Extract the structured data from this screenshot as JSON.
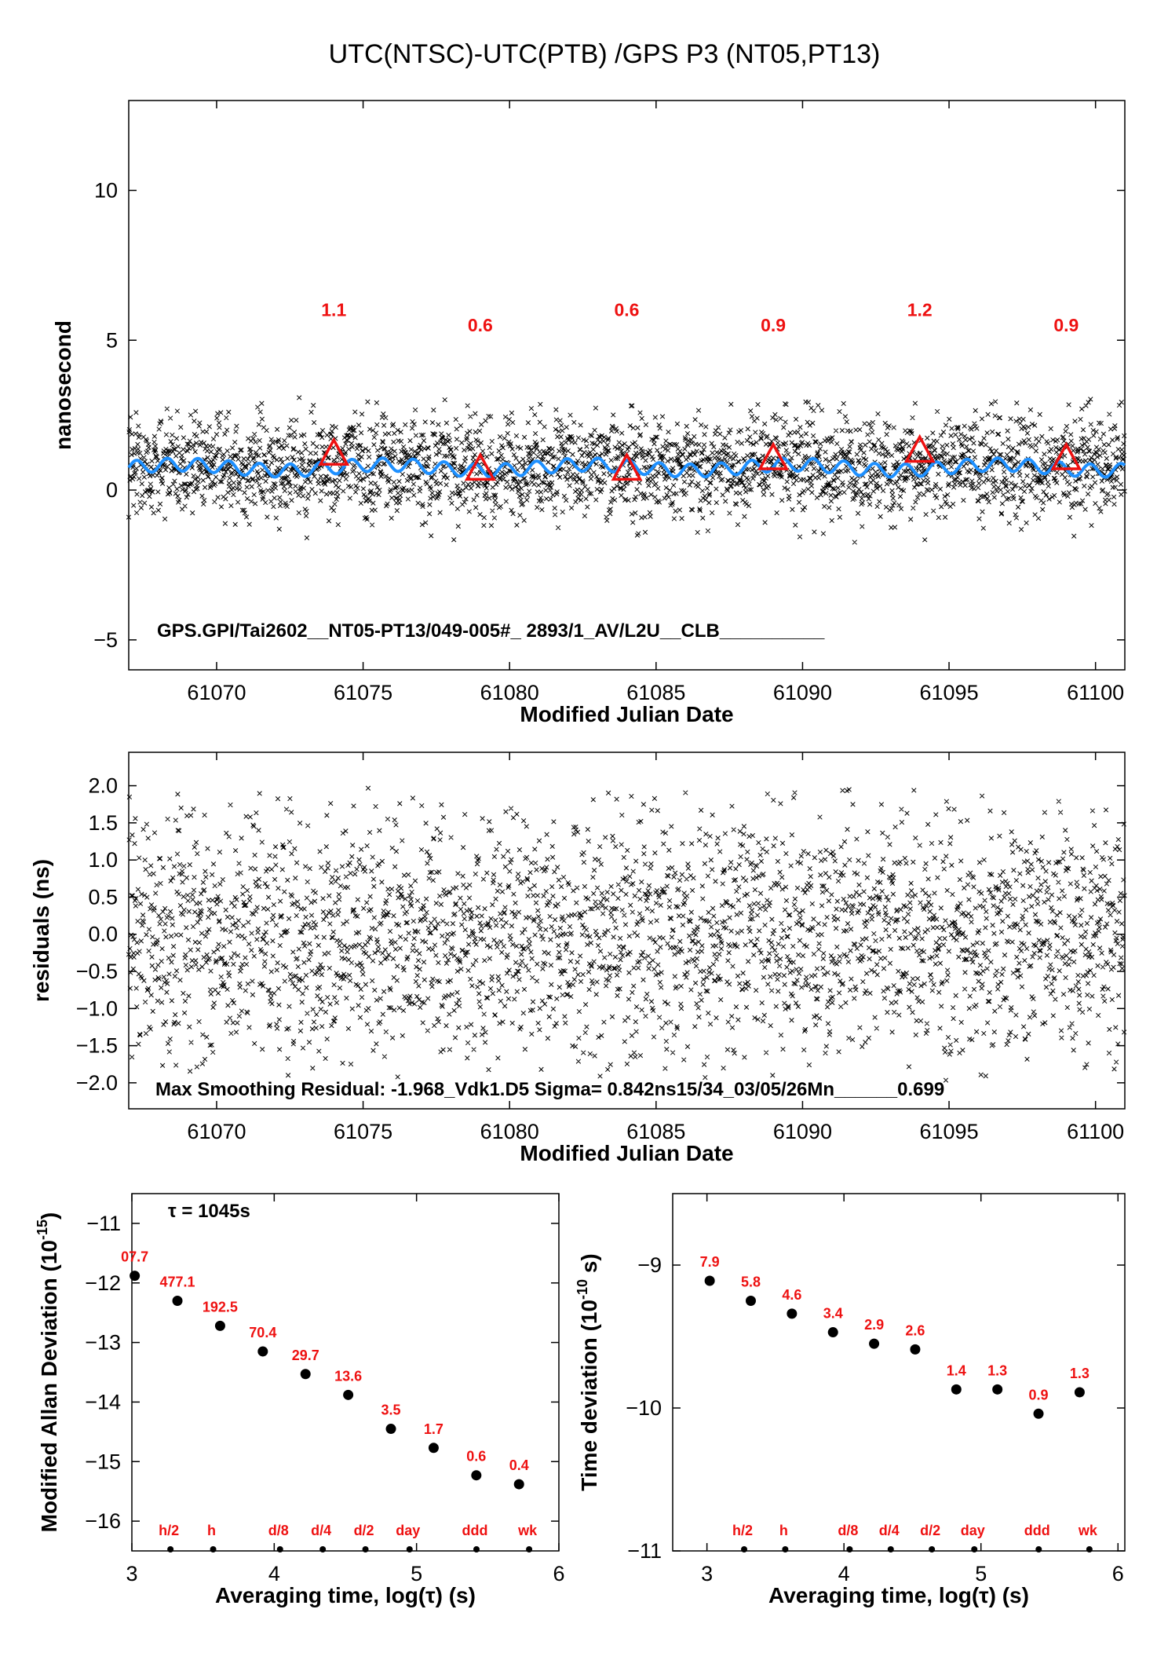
{
  "title": "UTC(NTSC)-UTC(PTB)  /GPS  P3  (NT05,PT13)",
  "colors": {
    "smooth_line": "#1e90ff",
    "markers": "#ee1111",
    "points": "#000000"
  },
  "chart_data": [
    {
      "id": "time-series",
      "type": "scatter",
      "xlabel": "Modified Julian Date",
      "ylabel": "nanosecond",
      "xlim": [
        61067,
        61101
      ],
      "ylim": [
        -6,
        13
      ],
      "xticks": [
        61070,
        61075,
        61080,
        61085,
        61090,
        61095,
        61100
      ],
      "yticks": [
        -5,
        0,
        5,
        10
      ],
      "annotation": "GPS.GPI/Tai2602__NT05-PT13/049-005#_  2893/1_AV/L2U__CLB__________",
      "scatter_description": {
        "center_ns": 0.7,
        "spread_ns": 0.85,
        "count": 2893
      },
      "smooth_series": {
        "mean_ns": 0.75,
        "color": "#1e90ff"
      },
      "markers": [
        {
          "x": 61074,
          "y": 1.2,
          "label": "1.1"
        },
        {
          "x": 61079,
          "y": 0.7,
          "label": "0.6"
        },
        {
          "x": 61084,
          "y": 0.7,
          "label": "0.6"
        },
        {
          "x": 61089,
          "y": 1.05,
          "label": "0.9"
        },
        {
          "x": 61094,
          "y": 1.3,
          "label": "1.2"
        },
        {
          "x": 61099,
          "y": 1.05,
          "label": "0.9"
        }
      ]
    },
    {
      "id": "residuals",
      "type": "scatter",
      "xlabel": "Modified Julian Date",
      "ylabel": "residuals (ns)",
      "xlim": [
        61067,
        61101
      ],
      "ylim": [
        -2.35,
        2.45
      ],
      "xticks": [
        61070,
        61075,
        61080,
        61085,
        61090,
        61095,
        61100
      ],
      "yticks": [
        -2.0,
        -1.5,
        -1.0,
        -0.5,
        0.0,
        0.5,
        1.0,
        1.5,
        2.0
      ],
      "annotation": "Max Smoothing Residual: -1.968_Vdk1.D5  Sigma= 0.842ns15/34_03/05/26Mn______0.699"
    },
    {
      "id": "mdev",
      "type": "scatter",
      "xlabel": "Averaging time, log(τ) (s)",
      "ylabel": "Modified Allan Deviation (10",
      "ylabel_sup": "-15",
      "ylabel_end": ")",
      "xlim": [
        3,
        6
      ],
      "ylim": [
        -16.5,
        -10.5
      ],
      "xticks": [
        3,
        4,
        5,
        6
      ],
      "yticks": [
        -16,
        -15,
        -14,
        -13,
        -12,
        -11
      ],
      "tau_note": "τ = 1045s",
      "x": [
        3.02,
        3.32,
        3.62,
        3.92,
        4.22,
        4.52,
        4.82,
        5.12,
        5.42,
        5.72
      ],
      "y": [
        -11.88,
        -12.3,
        -12.72,
        -13.15,
        -13.53,
        -13.88,
        -14.45,
        -14.77,
        -15.23,
        -15.38
      ],
      "labels": [
        "07.7",
        "477.1",
        "192.5",
        "70.4",
        "29.7",
        "13.6",
        "3.5",
        "1.7",
        "0.6",
        "0.4"
      ],
      "time_marks": [
        {
          "x": 3.26,
          "label": "h/2"
        },
        {
          "x": 3.56,
          "label": "h"
        },
        {
          "x": 4.03,
          "label": "d/8"
        },
        {
          "x": 4.33,
          "label": "d/4"
        },
        {
          "x": 4.63,
          "label": "d/2"
        },
        {
          "x": 4.94,
          "label": "day"
        },
        {
          "x": 5.41,
          "label": "ddd"
        },
        {
          "x": 5.78,
          "label": "wk"
        }
      ]
    },
    {
      "id": "tdev",
      "type": "scatter",
      "xlabel": "Averaging time, log(τ) (s)",
      "ylabel": "Time deviation (10",
      "ylabel_sup": "-10",
      "ylabel_end": " s)",
      "xlim": [
        2.75,
        6.05
      ],
      "ylim": [
        -11,
        -8.5
      ],
      "xticks": [
        3,
        4,
        5,
        6
      ],
      "yticks": [
        -11,
        -10,
        -9
      ],
      "x": [
        3.02,
        3.32,
        3.62,
        3.92,
        4.22,
        4.52,
        4.82,
        5.12,
        5.42,
        5.72
      ],
      "y": [
        -9.11,
        -9.25,
        -9.34,
        -9.47,
        -9.55,
        -9.59,
        -9.87,
        -9.87,
        -10.04,
        -9.89
      ],
      "labels": [
        "7.9",
        "5.8",
        "4.6",
        "3.4",
        "2.9",
        "2.6",
        "1.4",
        "1.3",
        "0.9",
        "1.3"
      ],
      "time_marks": [
        {
          "x": 3.26,
          "label": "h/2"
        },
        {
          "x": 3.56,
          "label": "h"
        },
        {
          "x": 4.03,
          "label": "d/8"
        },
        {
          "x": 4.33,
          "label": "d/4"
        },
        {
          "x": 4.63,
          "label": "d/2"
        },
        {
          "x": 4.94,
          "label": "day"
        },
        {
          "x": 5.41,
          "label": "ddd"
        },
        {
          "x": 5.78,
          "label": "wk"
        }
      ]
    }
  ]
}
